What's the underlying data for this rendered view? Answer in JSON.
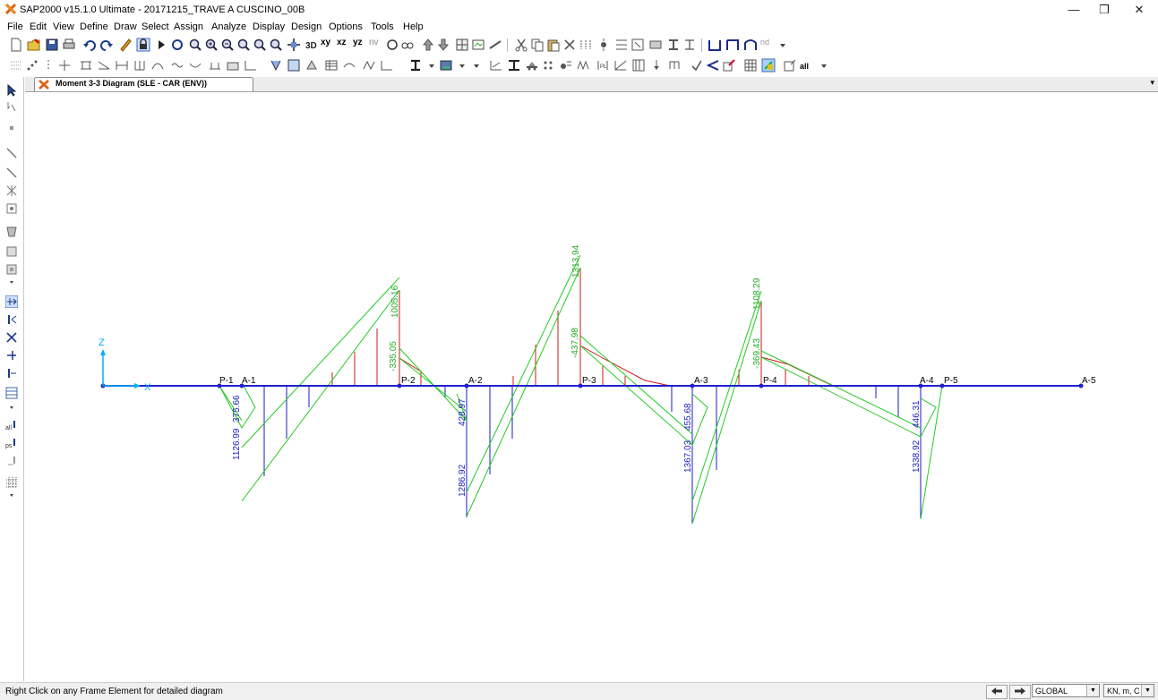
{
  "window": {
    "title": "SAP2000 v15.1.0 Ultimate  - 20171215_TRAVE A CUSCINO_00B"
  },
  "window_controls": {
    "minimize": "—",
    "restore": "❐",
    "close": "✕"
  },
  "menu": [
    "File",
    "Edit",
    "View",
    "Define",
    "Draw",
    "Select",
    "Assign",
    "Analyze",
    "Display",
    "Design",
    "Options",
    "Tools",
    "Help"
  ],
  "toolbar": {
    "view_buttons": [
      "xy",
      "xz",
      "yz",
      "nv"
    ],
    "nd_label": "nd",
    "all_label": "all"
  },
  "tab": {
    "label": "Moment 3-3 Diagram  (SLE - CAR (ENV))",
    "dropdown": "▾"
  },
  "diagram": {
    "axis_labels": {
      "z": "Z",
      "x": "X"
    },
    "joint_labels": [
      "P-1",
      "A-1",
      "P-2",
      "A-2",
      "P-3",
      "A-3",
      "P-4",
      "A-4",
      "P-5",
      "A-5"
    ],
    "positive_values": [
      "1005.16",
      "-335.05",
      "1313.94",
      "-437.98",
      "1108.29",
      "-369.43"
    ],
    "negative_values": [
      "375.66",
      "1126.99",
      "428.97",
      "1286.92",
      "455.68",
      "1367.03",
      "446.31",
      "1338.92"
    ],
    "colors": {
      "frame": "#2020d0",
      "envelope": "#22cc22",
      "positive_fill": "#cc1a1a",
      "negative_fill": "#1a1acc"
    }
  },
  "status": {
    "message": "Right Click on any Frame Element for detailed diagram",
    "coord_system": "GLOBAL",
    "units": "KN, m, C"
  }
}
